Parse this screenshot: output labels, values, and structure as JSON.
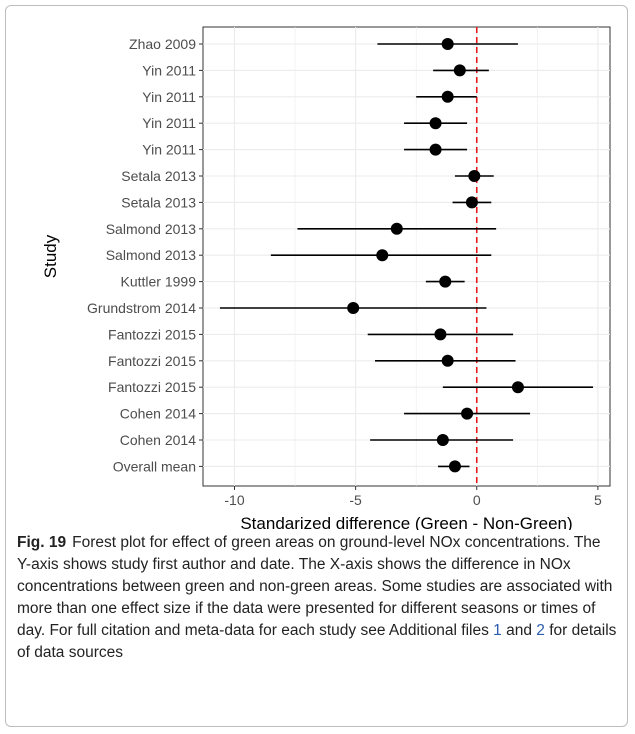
{
  "chart_data": {
    "type": "scatter",
    "subtype": "forest-plot",
    "ylabel": "Study",
    "xlabel": "Standarized difference (Green - Non-Green)",
    "xlim": [
      -11.3,
      5.5
    ],
    "x_ticks": [
      -10,
      -5,
      0,
      5
    ],
    "x_tick_labels": [
      "-10",
      "-5",
      "0",
      "5"
    ],
    "reference_line": {
      "x": 0,
      "color": "#e41a1c",
      "style": "dashed"
    },
    "grid": true,
    "point_color": "#000000",
    "studies": [
      {
        "label": "Zhao 2009",
        "estimate": -1.2,
        "lower": -4.1,
        "upper": 1.7
      },
      {
        "label": "Yin 2011",
        "estimate": -0.7,
        "lower": -1.8,
        "upper": 0.5
      },
      {
        "label": "Yin 2011",
        "estimate": -1.2,
        "lower": -2.5,
        "upper": 0.0
      },
      {
        "label": "Yin 2011",
        "estimate": -1.7,
        "lower": -3.0,
        "upper": -0.4
      },
      {
        "label": "Yin 2011",
        "estimate": -1.7,
        "lower": -3.0,
        "upper": -0.4
      },
      {
        "label": "Setala 2013",
        "estimate": -0.1,
        "lower": -0.9,
        "upper": 0.7
      },
      {
        "label": "Setala 2013",
        "estimate": -0.2,
        "lower": -1.0,
        "upper": 0.6
      },
      {
        "label": "Salmond 2013",
        "estimate": -3.3,
        "lower": -7.4,
        "upper": 0.8
      },
      {
        "label": "Salmond 2013",
        "estimate": -3.9,
        "lower": -8.5,
        "upper": 0.6
      },
      {
        "label": "Kuttler 1999",
        "estimate": -1.3,
        "lower": -2.1,
        "upper": -0.5
      },
      {
        "label": "Grundstrom 2014",
        "estimate": -5.1,
        "lower": -10.6,
        "upper": 0.4
      },
      {
        "label": "Fantozzi 2015",
        "estimate": -1.5,
        "lower": -4.5,
        "upper": 1.5
      },
      {
        "label": "Fantozzi 2015",
        "estimate": -1.2,
        "lower": -4.2,
        "upper": 1.6
      },
      {
        "label": "Fantozzi 2015",
        "estimate": 1.7,
        "lower": -1.4,
        "upper": 4.8
      },
      {
        "label": "Cohen 2014",
        "estimate": -0.4,
        "lower": -3.0,
        "upper": 2.2
      },
      {
        "label": "Cohen 2014",
        "estimate": -1.4,
        "lower": -4.4,
        "upper": 1.5
      },
      {
        "label": "Overall mean",
        "estimate": -0.9,
        "lower": -1.6,
        "upper": -0.3
      }
    ]
  },
  "caption": {
    "figure_label": "Fig. 19",
    "text_before_link1": "Forest plot for effect of green areas on ground-level NOx concentrations. The Y-axis shows study first author and date. The X-axis shows the difference in NOx concentrations between green and non-green areas. Some studies are associated with more than one effect size if the data were presented for different seasons or times of day. For full citation and meta-data for each study see Additional files ",
    "link1": "1",
    "text_between": " and ",
    "link2": "2",
    "text_after": " for details of data sources"
  }
}
